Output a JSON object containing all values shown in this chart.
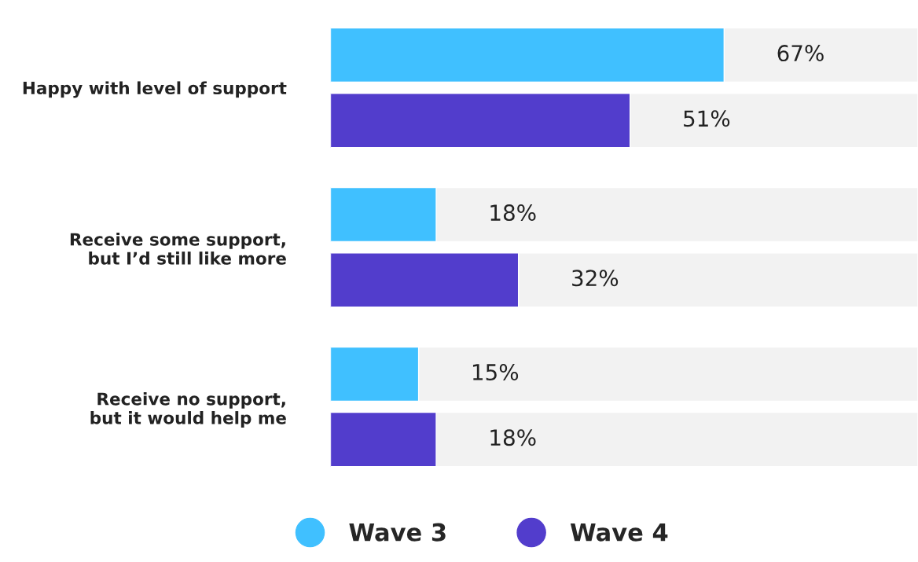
{
  "chart_data": {
    "type": "bar",
    "orientation": "horizontal",
    "categories": [
      "Happy with level of support",
      "Receive some support,\nbut I’d still like more",
      "Receive no support,\nbut it would help me"
    ],
    "series": [
      {
        "name": "Wave 3",
        "color": "#40c0ff",
        "values": [
          67,
          18,
          15
        ],
        "value_labels": [
          "67%",
          "18%",
          "15%"
        ]
      },
      {
        "name": "Wave 4",
        "color": "#523dcc",
        "values": [
          51,
          32,
          18
        ],
        "value_labels": [
          "51%",
          "32%",
          "18%"
        ]
      }
    ],
    "xlim": [
      0,
      100
    ],
    "tick_labels": "y",
    "grid": false,
    "legend": "bottom"
  }
}
